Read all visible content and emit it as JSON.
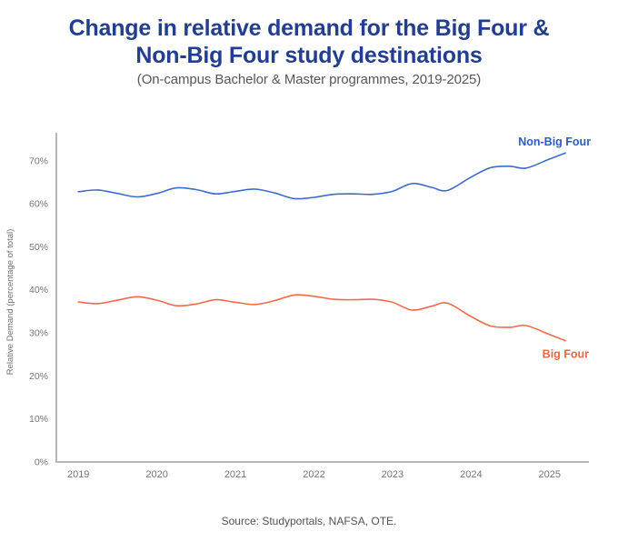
{
  "header": {
    "title_line1": "Change in relative demand for the Big Four &",
    "title_line2": "Non-Big Four study destinations",
    "subtitle": "(On-campus Bachelor & Master programmes, 2019-2025)"
  },
  "footer": {
    "source": "Source: Studyportals, NAFSA, OTE."
  },
  "colors": {
    "title": "#233e8e",
    "subtitle": "#57575b",
    "source_text": "#515156",
    "axis_line": "#b6b6bd",
    "tick_text": "#76767b",
    "ylabel_text": "#6d6d72",
    "background": "#ffffff"
  },
  "chart_data": {
    "type": "line",
    "title": "Change in relative demand for the Big Four & Non-Big Four study destinations",
    "subtitle": "(On-campus Bachelor & Master programmes, 2019-2025)",
    "xlabel": "",
    "ylabel": "Relative Demand (percentage of total)",
    "grid": false,
    "legend_position": "end-of-line-labels",
    "xlim": [
      2018.72,
      2025.5
    ],
    "ylim": [
      0,
      76.5
    ],
    "x": [
      2019.0,
      2019.25,
      2019.5,
      2019.75,
      2020.0,
      2020.25,
      2020.5,
      2020.75,
      2021.0,
      2021.25,
      2021.5,
      2021.75,
      2022.0,
      2022.25,
      2022.5,
      2022.75,
      2023.0,
      2023.25,
      2023.5,
      2023.7,
      2024.0,
      2024.25,
      2024.5,
      2024.7,
      2025.0,
      2025.2
    ],
    "x_ticks": {
      "values": [
        2019,
        2020,
        2021,
        2022,
        2023,
        2024,
        2025
      ],
      "labels": [
        "2019",
        "2020",
        "2021",
        "2022",
        "2023",
        "2024",
        "2025"
      ]
    },
    "y_ticks": {
      "values": [
        0,
        10,
        20,
        30,
        40,
        50,
        60,
        70
      ],
      "labels": [
        "0%",
        "10%",
        "20%",
        "30%",
        "40%",
        "50%",
        "60%",
        "70%"
      ]
    },
    "series": [
      {
        "name": "Non-Big Four",
        "color": "#3f6cca",
        "label_color": "#2a5ec6",
        "values": [
          62.8,
          63.2,
          62.4,
          61.6,
          62.4,
          63.7,
          63.3,
          62.3,
          62.9,
          63.4,
          62.5,
          61.2,
          61.5,
          62.2,
          62.3,
          62.2,
          62.9,
          64.7,
          63.8,
          63.1,
          66.2,
          68.4,
          68.7,
          68.3,
          70.4,
          71.8
        ]
      },
      {
        "name": "Big Four",
        "color": "#ee6c4b",
        "label_color": "#ed6643",
        "values": [
          37.2,
          36.8,
          37.6,
          38.4,
          37.6,
          36.3,
          36.7,
          37.7,
          37.1,
          36.6,
          37.5,
          38.8,
          38.5,
          37.8,
          37.7,
          37.8,
          37.1,
          35.3,
          36.2,
          36.9,
          33.8,
          31.6,
          31.3,
          31.7,
          29.6,
          28.2
        ]
      }
    ]
  }
}
